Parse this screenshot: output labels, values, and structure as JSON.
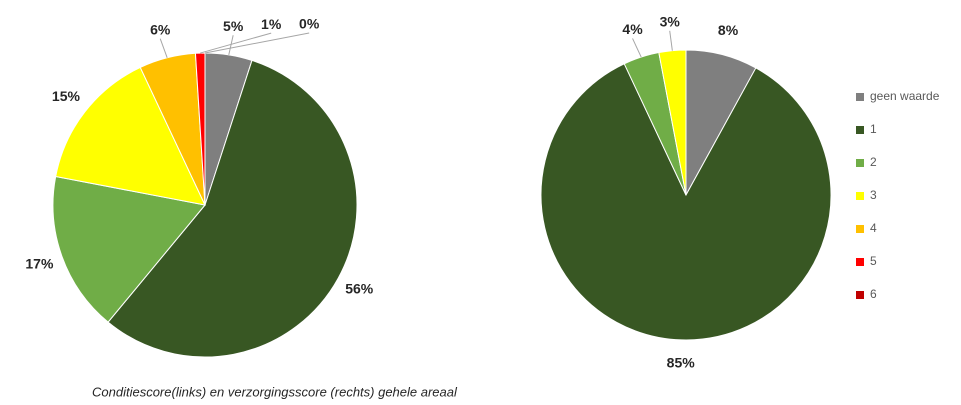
{
  "chart_data": [
    {
      "type": "pie",
      "categories": [
        "geen waarde",
        "1",
        "2",
        "3",
        "4",
        "5",
        "6"
      ],
      "values": [
        5,
        56,
        17,
        15,
        6,
        1,
        0
      ],
      "value_labels": [
        "5%",
        "56%",
        "17%",
        "15%",
        "6%",
        "1%",
        "0%"
      ],
      "colors": [
        "#7f7f7f",
        "#385723",
        "#70ad47",
        "#ffff00",
        "#ffc000",
        "#ff0000",
        "#c00000"
      ]
    },
    {
      "type": "pie",
      "categories": [
        "geen waarde",
        "1",
        "2",
        "3"
      ],
      "values": [
        8,
        85,
        4,
        3
      ],
      "value_labels": [
        "8%",
        "85%",
        "4%",
        "3%"
      ],
      "colors": [
        "#7f7f7f",
        "#385723",
        "#70ad47",
        "#ffff00"
      ]
    }
  ],
  "caption": "Conditiescore(links) en verzorgingsscore (rechts) gehele areaal"
}
